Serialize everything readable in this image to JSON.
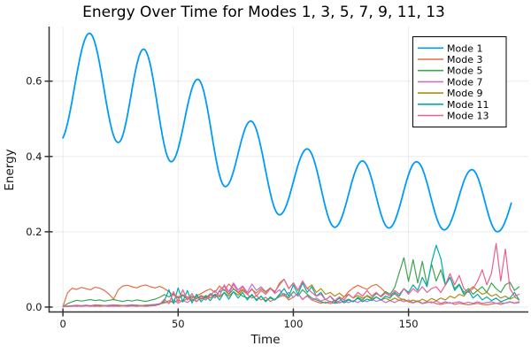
{
  "chart_data": {
    "type": "line",
    "title": "Energy Over Time for Modes 1, 3, 5, 7, 9, 11, 13",
    "xlabel": "Time",
    "ylabel": "Energy",
    "xlim": [
      -6,
      202
    ],
    "ylim": [
      -0.013,
      0.745
    ],
    "xticks": [
      0,
      50,
      100,
      150
    ],
    "xtick_labels": [
      "0",
      "50",
      "100",
      "150"
    ],
    "yticks": [
      0.0,
      0.2,
      0.4,
      0.6
    ],
    "ytick_labels": [
      "0.0",
      "0.2",
      "0.4",
      "0.6"
    ],
    "grid": true,
    "legend_position": "top-right",
    "series": [
      {
        "name": "Mode 1",
        "color": "#009AFA",
        "line_width": 1.8,
        "interp": "cosine-extrema",
        "t_start": 0,
        "t_end": 194.6,
        "extrema": [
          [
            -1.5,
            0.44
          ],
          [
            11.5,
            0.727
          ],
          [
            24,
            0.437
          ],
          [
            35,
            0.685
          ],
          [
            47,
            0.386
          ],
          [
            58.5,
            0.605
          ],
          [
            70.5,
            0.32
          ],
          [
            81.5,
            0.494
          ],
          [
            94,
            0.245
          ],
          [
            106,
            0.42
          ],
          [
            118,
            0.212
          ],
          [
            130,
            0.388
          ],
          [
            141.5,
            0.21
          ],
          [
            153.5,
            0.386
          ],
          [
            165.5,
            0.205
          ],
          [
            177.5,
            0.365
          ],
          [
            188.6,
            0.2
          ],
          [
            201,
            0.36
          ]
        ]
      },
      {
        "name": "Mode 3",
        "color": "#E26F46",
        "line_width": 1.2,
        "interp": "linear",
        "x_start": 0,
        "x_step": 2,
        "values": [
          0.001,
          0.038,
          0.05,
          0.047,
          0.052,
          0.049,
          0.046,
          0.053,
          0.05,
          0.044,
          0.034,
          0.021,
          0.046,
          0.056,
          0.058,
          0.054,
          0.051,
          0.056,
          0.059,
          0.054,
          0.051,
          0.055,
          0.049,
          0.041,
          0.031,
          0.027,
          0.033,
          0.027,
          0.024,
          0.03,
          0.036,
          0.043,
          0.048,
          0.039,
          0.056,
          0.044,
          0.061,
          0.049,
          0.038,
          0.047,
          0.034,
          0.024,
          0.03,
          0.019,
          0.026,
          0.015,
          0.021,
          0.027,
          0.032,
          0.019,
          0.026,
          0.036,
          0.02,
          0.031,
          0.019,
          0.014,
          0.01,
          0.013,
          0.009,
          0.012,
          0.016,
          0.026,
          0.041,
          0.051,
          0.058,
          0.052,
          0.047,
          0.056,
          0.06,
          0.051,
          0.039,
          0.029,
          0.035,
          0.024,
          0.019,
          0.014,
          0.011,
          0.015,
          0.009,
          0.012,
          0.014,
          0.009,
          0.007,
          0.01,
          0.012,
          0.007,
          0.01,
          0.008,
          0.006,
          0.008,
          0.01,
          0.007,
          0.006,
          0.008,
          0.01,
          0.007,
          0.011,
          0.014,
          0.011,
          0.014
        ]
      },
      {
        "name": "Mode 5",
        "color": "#3EA44E",
        "line_width": 1.2,
        "interp": "linear",
        "x_start": 0,
        "x_step": 2,
        "values": [
          0.001,
          0.009,
          0.014,
          0.018,
          0.016,
          0.018,
          0.02,
          0.017,
          0.019,
          0.016,
          0.018,
          0.02,
          0.017,
          0.015,
          0.018,
          0.016,
          0.019,
          0.017,
          0.015,
          0.018,
          0.021,
          0.026,
          0.033,
          0.027,
          0.035,
          0.024,
          0.031,
          0.021,
          0.029,
          0.022,
          0.031,
          0.024,
          0.036,
          0.029,
          0.041,
          0.046,
          0.034,
          0.048,
          0.039,
          0.029,
          0.024,
          0.031,
          0.02,
          0.028,
          0.017,
          0.024,
          0.019,
          0.031,
          0.036,
          0.024,
          0.041,
          0.029,
          0.046,
          0.034,
          0.024,
          0.019,
          0.014,
          0.011,
          0.015,
          0.01,
          0.012,
          0.016,
          0.021,
          0.014,
          0.026,
          0.019,
          0.031,
          0.024,
          0.036,
          0.029,
          0.041,
          0.034,
          0.052,
          0.092,
          0.131,
          0.068,
          0.126,
          0.064,
          0.121,
          0.059,
          0.114,
          0.069,
          0.099,
          0.058,
          0.079,
          0.049,
          0.061,
          0.039,
          0.049,
          0.034,
          0.044,
          0.054,
          0.039,
          0.064,
          0.049,
          0.039,
          0.059,
          0.066,
          0.044,
          0.054
        ]
      },
      {
        "name": "Mode 7",
        "color": "#C371D2",
        "line_width": 1.2,
        "interp": "linear",
        "x_start": 0,
        "x_step": 2,
        "values": [
          0.001,
          0.003,
          0.004,
          0.005,
          0.004,
          0.005,
          0.004,
          0.006,
          0.005,
          0.004,
          0.005,
          0.006,
          0.005,
          0.004,
          0.005,
          0.006,
          0.005,
          0.004,
          0.005,
          0.006,
          0.007,
          0.009,
          0.013,
          0.011,
          0.019,
          0.01,
          0.018,
          0.012,
          0.021,
          0.015,
          0.024,
          0.019,
          0.031,
          0.044,
          0.029,
          0.059,
          0.041,
          0.064,
          0.046,
          0.056,
          0.039,
          0.061,
          0.044,
          0.054,
          0.041,
          0.051,
          0.036,
          0.046,
          0.029,
          0.039,
          0.026,
          0.036,
          0.021,
          0.029,
          0.019,
          0.024,
          0.016,
          0.021,
          0.013,
          0.017,
          0.011,
          0.015,
          0.012,
          0.017,
          0.012,
          0.019,
          0.014,
          0.021,
          0.015,
          0.019,
          0.012,
          0.017,
          0.012,
          0.019,
          0.014,
          0.019,
          0.012,
          0.017,
          0.01,
          0.014,
          0.011,
          0.016,
          0.01,
          0.014,
          0.01,
          0.012,
          0.014,
          0.01,
          0.013,
          0.01,
          0.014,
          0.01,
          0.012,
          0.014,
          0.01,
          0.012,
          0.01,
          0.013,
          0.01,
          0.012
        ]
      },
      {
        "name": "Mode 9",
        "color": "#AC8E18",
        "line_width": 1.2,
        "interp": "linear",
        "x_start": 0,
        "x_step": 2,
        "values": [
          0.001,
          0.002,
          0.003,
          0.004,
          0.003,
          0.004,
          0.003,
          0.004,
          0.005,
          0.004,
          0.003,
          0.004,
          0.005,
          0.004,
          0.003,
          0.004,
          0.005,
          0.004,
          0.005,
          0.004,
          0.006,
          0.008,
          0.011,
          0.017,
          0.012,
          0.019,
          0.014,
          0.024,
          0.017,
          0.027,
          0.021,
          0.031,
          0.024,
          0.034,
          0.027,
          0.039,
          0.029,
          0.041,
          0.032,
          0.044,
          0.034,
          0.047,
          0.037,
          0.049,
          0.039,
          0.051,
          0.041,
          0.059,
          0.074,
          0.049,
          0.064,
          0.044,
          0.069,
          0.049,
          0.059,
          0.039,
          0.049,
          0.034,
          0.039,
          0.029,
          0.037,
          0.027,
          0.034,
          0.024,
          0.031,
          0.024,
          0.029,
          0.021,
          0.027,
          0.019,
          0.024,
          0.017,
          0.024,
          0.017,
          0.021,
          0.014,
          0.019,
          0.014,
          0.021,
          0.015,
          0.023,
          0.017,
          0.024,
          0.019,
          0.029,
          0.024,
          0.034,
          0.029,
          0.044,
          0.054,
          0.044,
          0.034,
          0.039,
          0.029,
          0.034,
          0.024,
          0.029,
          0.021,
          0.027,
          0.019
        ]
      },
      {
        "name": "Mode 11",
        "color": "#00AAAE",
        "line_width": 1.2,
        "interp": "linear",
        "x_start": 0,
        "x_step": 2,
        "values": [
          0.001,
          0.002,
          0.003,
          0.002,
          0.003,
          0.004,
          0.003,
          0.002,
          0.003,
          0.004,
          0.003,
          0.002,
          0.003,
          0.004,
          0.003,
          0.004,
          0.003,
          0.004,
          0.003,
          0.004,
          0.005,
          0.008,
          0.016,
          0.046,
          0.009,
          0.051,
          0.014,
          0.044,
          0.011,
          0.034,
          0.014,
          0.029,
          0.017,
          0.034,
          0.019,
          0.039,
          0.021,
          0.041,
          0.024,
          0.039,
          0.019,
          0.034,
          0.017,
          0.029,
          0.014,
          0.027,
          0.019,
          0.034,
          0.049,
          0.029,
          0.059,
          0.034,
          0.064,
          0.039,
          0.054,
          0.029,
          0.039,
          0.019,
          0.029,
          0.014,
          0.024,
          0.011,
          0.019,
          0.014,
          0.024,
          0.014,
          0.021,
          0.017,
          0.027,
          0.019,
          0.029,
          0.024,
          0.039,
          0.029,
          0.049,
          0.039,
          0.059,
          0.044,
          0.079,
          0.054,
          0.119,
          0.164,
          0.129,
          0.059,
          0.079,
          0.044,
          0.059,
          0.034,
          0.044,
          0.024,
          0.034,
          0.019,
          0.027,
          0.017,
          0.024,
          0.014,
          0.019,
          0.024,
          0.039,
          0.019
        ]
      },
      {
        "name": "Mode 13",
        "color": "#ED5E93",
        "line_width": 1.2,
        "interp": "linear",
        "x_start": 0,
        "x_step": 2,
        "values": [
          0.001,
          0.002,
          0.002,
          0.003,
          0.002,
          0.003,
          0.002,
          0.003,
          0.002,
          0.003,
          0.002,
          0.003,
          0.002,
          0.003,
          0.002,
          0.003,
          0.002,
          0.003,
          0.002,
          0.003,
          0.004,
          0.007,
          0.021,
          0.009,
          0.041,
          0.014,
          0.046,
          0.019,
          0.036,
          0.014,
          0.029,
          0.019,
          0.034,
          0.024,
          0.044,
          0.056,
          0.034,
          0.061,
          0.039,
          0.054,
          0.034,
          0.049,
          0.029,
          0.044,
          0.034,
          0.049,
          0.039,
          0.064,
          0.074,
          0.049,
          0.064,
          0.044,
          0.069,
          0.049,
          0.039,
          0.029,
          0.034,
          0.019,
          0.029,
          0.017,
          0.027,
          0.019,
          0.034,
          0.024,
          0.039,
          0.029,
          0.044,
          0.029,
          0.039,
          0.027,
          0.037,
          0.029,
          0.044,
          0.034,
          0.049,
          0.034,
          0.049,
          0.039,
          0.054,
          0.039,
          0.049,
          0.054,
          0.039,
          0.059,
          0.089,
          0.059,
          0.084,
          0.049,
          0.039,
          0.049,
          0.069,
          0.099,
          0.059,
          0.089,
          0.169,
          0.069,
          0.154,
          0.049,
          0.029,
          0.034
        ]
      }
    ]
  }
}
